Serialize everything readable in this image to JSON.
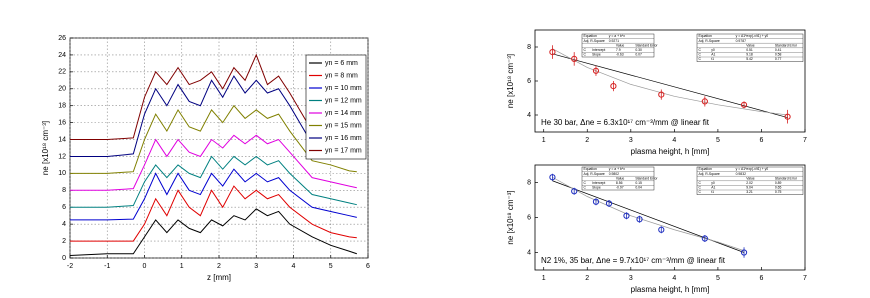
{
  "chart_data": [
    {
      "type": "line",
      "xlabel": "z [mm]",
      "ylabel": "ne [x10¹⁸ cm⁻³]",
      "xlim": [
        -2,
        6
      ],
      "xticks": [
        -2,
        -1,
        0,
        1,
        2,
        3,
        4,
        5,
        6
      ],
      "ylim": [
        0,
        26
      ],
      "yticks": [
        0,
        2,
        4,
        6,
        8,
        10,
        12,
        14,
        16,
        18,
        20,
        22,
        24,
        26
      ],
      "grid": true,
      "legend": "upper-right",
      "x": [
        -2,
        -1,
        -0.3,
        0,
        0.3,
        0.6,
        0.9,
        1.2,
        1.5,
        1.8,
        2.1,
        2.4,
        2.7,
        3,
        3.3,
        3.6,
        3.9,
        4.5,
        5,
        5.5,
        5.7
      ],
      "series": [
        {
          "name": "yn = 6 mm",
          "color": "#000000",
          "values": [
            0.3,
            0.5,
            0.5,
            2.5,
            4.5,
            3,
            4.5,
            3.5,
            3,
            4.5,
            3.8,
            5,
            4.5,
            5.8,
            5,
            5.5,
            4,
            2.5,
            1.5,
            0.8,
            0.5
          ]
        },
        {
          "name": "yn = 8 mm",
          "color": "#e00000",
          "values": [
            2,
            2,
            2,
            4,
            7,
            5,
            8,
            6,
            5,
            8,
            6,
            8.5,
            7,
            8,
            7,
            7.5,
            6,
            4,
            3,
            2.5,
            2.4
          ]
        },
        {
          "name": "yn = 10 mm",
          "color": "#0000d0",
          "values": [
            4.5,
            4.5,
            4.6,
            7,
            10,
            7.5,
            10,
            8,
            7.5,
            10,
            8.5,
            10.5,
            9,
            10,
            9,
            9.5,
            8,
            6,
            5.5,
            5,
            4.8
          ]
        },
        {
          "name": "yn = 12 mm",
          "color": "#008080",
          "values": [
            6,
            6,
            6.2,
            9,
            11,
            9.5,
            11,
            10,
            9.5,
            12,
            10.5,
            12,
            11,
            12,
            11,
            11.5,
            10,
            7.5,
            7,
            6.5,
            6.3
          ]
        },
        {
          "name": "yn = 14 mm",
          "color": "#e000e0",
          "values": [
            8,
            8,
            8.2,
            11,
            14,
            12,
            14,
            12.5,
            12,
            14,
            13,
            14.5,
            13.5,
            14.5,
            13.5,
            14,
            12.5,
            9.5,
            9,
            8.5,
            8.3
          ]
        },
        {
          "name": "yn = 15 mm",
          "color": "#808000",
          "values": [
            10,
            10,
            10.2,
            14,
            17,
            15,
            17.5,
            15.5,
            15,
            17.5,
            16,
            18,
            16.5,
            17.5,
            16.5,
            17,
            15,
            11.5,
            11,
            10.3,
            10.2
          ]
        },
        {
          "name": "yn = 16 mm",
          "color": "#000080",
          "values": [
            12,
            12,
            12.3,
            17,
            20,
            18,
            20.5,
            18.5,
            18,
            21,
            19,
            21.5,
            19.5,
            21,
            19.5,
            20,
            18,
            13.5,
            13,
            12.3,
            12.2
          ]
        },
        {
          "name": "yn = 17 mm",
          "color": "#800000",
          "values": [
            14,
            14,
            14.2,
            19,
            22,
            20.5,
            22.5,
            20.5,
            21,
            22,
            20,
            22.5,
            21,
            24,
            20.5,
            21.5,
            19.5,
            15,
            14.5,
            14.2,
            14
          ]
        }
      ]
    },
    {
      "type": "scatter",
      "xlabel": "plasma height, h [mm]",
      "ylabel": "ne [x10¹⁸ cm⁻³]",
      "annotation": "He 30 bar, Δne = 6.3x10¹⁷ cm⁻³/mm @ linear fit",
      "xlim": [
        0.8,
        7
      ],
      "xticks": [
        1,
        2,
        3,
        4,
        5,
        6,
        7
      ],
      "ylim": [
        3,
        9
      ],
      "yticks": [
        4,
        6,
        8
      ],
      "grid": false,
      "series": [
        {
          "color": "#d62020",
          "x": [
            1.2,
            1.7,
            2.2,
            2.6,
            3.7,
            4.7,
            5.6,
            6.6
          ],
          "values": [
            7.7,
            7.3,
            6.6,
            5.7,
            5.2,
            4.8,
            4.6,
            3.9
          ],
          "errors": [
            0.4,
            0.4,
            0.3,
            0.3,
            0.3,
            0.3,
            0.2,
            0.4
          ]
        }
      ],
      "fits": [
        {
          "color": "#000000",
          "x": [
            1.2,
            6.6
          ],
          "values": [
            7.6,
            3.85
          ]
        },
        {
          "color": "#999999",
          "x": [
            1.2,
            2,
            3,
            4,
            5,
            6,
            6.6
          ],
          "values": [
            7.9,
            6.8,
            5.8,
            5.1,
            4.6,
            4.2,
            4.0
          ]
        }
      ],
      "tables": [
        {
          "rows": [
            [
              "Equation",
              "y = a + b*x"
            ],
            [
              "Adj. R-Square",
              "0.9271"
            ],
            [
              "",
              "",
              "Value",
              "Standard Error"
            ],
            [
              "C",
              "Intercept",
              "7.9",
              "0.30"
            ],
            [
              "C",
              "Slope",
              "-0.63",
              "0.07"
            ]
          ]
        },
        {
          "rows": [
            [
              "Equation",
              "y = A1*exp(-x/t1) + y0"
            ],
            [
              "Adj. R-Square",
              "0.9787"
            ],
            [
              "",
              "",
              "Value",
              "Standard Error"
            ],
            [
              "C",
              "y0",
              "0.51",
              "0.41"
            ],
            [
              "C",
              "A1",
              "9.18",
              "0.58"
            ],
            [
              "C",
              "t1",
              "5.42",
              "0.77"
            ]
          ]
        }
      ]
    },
    {
      "type": "scatter",
      "xlabel": "plasma height, h [mm]",
      "ylabel": "ne [x10¹⁸ cm⁻³]",
      "annotation": "N2 1%, 35 bar, Δne = 9.7x10¹⁷ cm⁻³/mm @ linear fit",
      "xlim": [
        0.8,
        7
      ],
      "xticks": [
        1,
        2,
        3,
        4,
        5,
        6,
        7
      ],
      "ylim": [
        3,
        9
      ],
      "yticks": [
        4,
        6,
        8
      ],
      "grid": false,
      "series": [
        {
          "color": "#2030c0",
          "x": [
            1.2,
            1.7,
            2.2,
            2.5,
            2.9,
            3.2,
            3.7,
            4.7,
            5.6
          ],
          "values": [
            8.3,
            7.5,
            6.9,
            6.8,
            6.1,
            5.9,
            5.3,
            4.8,
            4.0
          ],
          "errors": [
            0.2,
            0.2,
            0.2,
            0.2,
            0.2,
            0.2,
            0.2,
            0.2,
            0.3
          ]
        }
      ],
      "fits": [
        {
          "color": "#000000",
          "x": [
            1.2,
            5.6
          ],
          "values": [
            8.1,
            4.0
          ]
        },
        {
          "color": "#999999",
          "x": [
            1.2,
            2,
            3,
            4,
            5,
            5.6
          ],
          "values": [
            8.3,
            7.2,
            6.1,
            5.3,
            4.6,
            4.1
          ]
        }
      ],
      "tables": [
        {
          "rows": [
            [
              "Equation",
              "y = a + b*x"
            ],
            [
              "Adj. R-Square",
              "0.9802"
            ],
            [
              "",
              "",
              "Value",
              "Standard Error"
            ],
            [
              "C",
              "Intercept",
              "8.56",
              "0.15"
            ],
            [
              "C",
              "Slope",
              "-0.97",
              "0.04"
            ]
          ]
        },
        {
          "rows": [
            [
              "Equation",
              "y = A1*exp(-x/t1) + y0"
            ],
            [
              "Adj. R-Square",
              "0.9832"
            ],
            [
              "",
              "",
              "Value",
              "Standard Error"
            ],
            [
              "C",
              "y0",
              "2.02",
              "0.89"
            ],
            [
              "C",
              "A1",
              "9.04",
              "0.65"
            ],
            [
              "C",
              "t1",
              "3.21",
              "0.75"
            ]
          ]
        }
      ]
    }
  ]
}
